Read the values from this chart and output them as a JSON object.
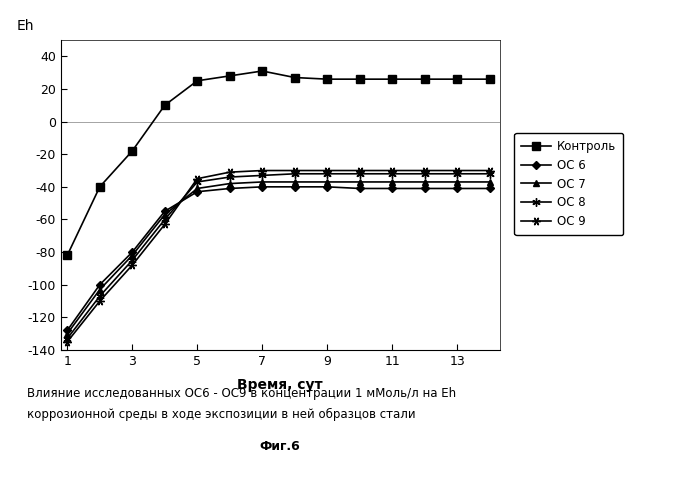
{
  "x": [
    1,
    2,
    3,
    4,
    5,
    6,
    7,
    8,
    9,
    10,
    11,
    12,
    13,
    14
  ],
  "kontrol": [
    -82,
    -40,
    -18,
    10,
    25,
    28,
    31,
    27,
    26,
    26,
    26,
    26,
    26,
    26
  ],
  "oc6": [
    -128,
    -100,
    -80,
    -55,
    -43,
    -41,
    -40,
    -40,
    -40,
    -41,
    -41,
    -41,
    -41,
    -41
  ],
  "oc7": [
    -130,
    -103,
    -82,
    -57,
    -41,
    -38,
    -37,
    -37,
    -37,
    -37,
    -37,
    -37,
    -37,
    -37
  ],
  "oc8": [
    -133,
    -107,
    -85,
    -60,
    -37,
    -34,
    -33,
    -32,
    -32,
    -32,
    -32,
    -32,
    -32,
    -32
  ],
  "oc9": [
    -135,
    -110,
    -88,
    -63,
    -35,
    -31,
    -30,
    -30,
    -30,
    -30,
    -30,
    -30,
    -30,
    -30
  ],
  "xlabel": "Время, сут",
  "ylabel": "Eh",
  "ylim": [
    -140,
    50
  ],
  "xlim": [
    0.8,
    14.3
  ],
  "xticks": [
    1,
    3,
    5,
    7,
    9,
    11,
    13
  ],
  "yticks": [
    -140,
    -120,
    -100,
    -80,
    -60,
    -40,
    -20,
    0,
    20,
    40
  ],
  "legend_labels": [
    "Контроль",
    "ОС 6",
    "ОС 7",
    "ОС 8",
    "ОС 9"
  ],
  "caption_line1": "Влияние исследованных ОС6 - ОС9 в концентрации 1 мМоль/л на Eh",
  "caption_line2": "коррозионной среды в ходе экспозиции в ней образцов стали",
  "caption_line3": "Фиг.6"
}
